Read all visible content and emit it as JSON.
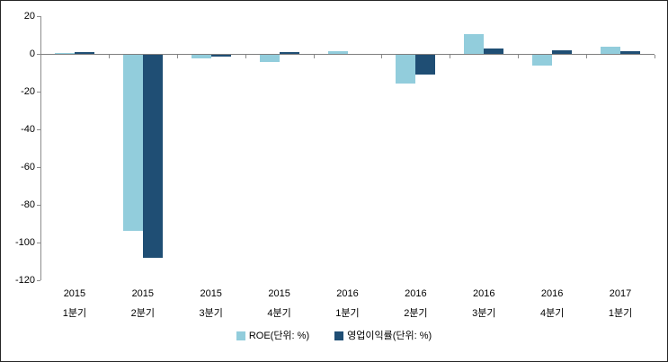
{
  "chart_data": {
    "type": "bar",
    "categories": [
      [
        "2015",
        "1분기"
      ],
      [
        "2015",
        "2분기"
      ],
      [
        "2015",
        "3분기"
      ],
      [
        "2015",
        "4분기"
      ],
      [
        "2016",
        "1분기"
      ],
      [
        "2016",
        "2분기"
      ],
      [
        "2016",
        "3분기"
      ],
      [
        "2016",
        "4분기"
      ],
      [
        "2017",
        "1분기"
      ]
    ],
    "series": [
      {
        "name": "ROE(단위: %)",
        "color": "#92CDDC",
        "values": [
          0.5,
          -93.5,
          -2,
          -4,
          1.5,
          -15,
          10.5,
          -5.5,
          4
        ]
      },
      {
        "name": "영업이익률(단위: %)",
        "color": "#1F4E74",
        "values": [
          1,
          -107.5,
          -1,
          1,
          0,
          -10.5,
          3,
          2,
          1.5
        ]
      }
    ],
    "ylim": [
      -120,
      20
    ],
    "y_ticks": [
      20,
      0,
      -20,
      -40,
      -60,
      -80,
      -100,
      -120
    ],
    "grid": false,
    "legend_position": "bottom-center",
    "axis_color": "#8c8c8c",
    "text_color": "#000000"
  }
}
